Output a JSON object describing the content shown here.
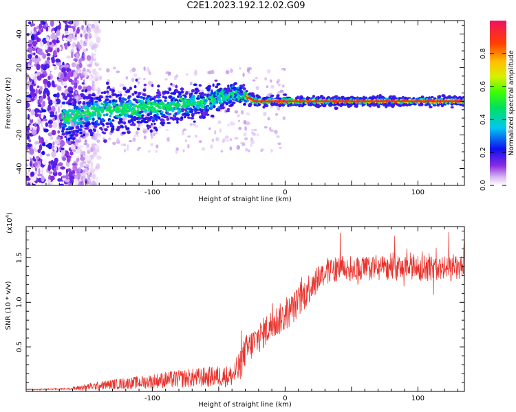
{
  "title": "C2E1.2023.192.12.02.G09",
  "colors": {
    "snr_line": "#e8322c",
    "axis": "#000000"
  },
  "chart_data": [
    {
      "type": "heatmap",
      "xlabel": "Height of straight line (km)",
      "ylabel": "Frequency (Hz)",
      "xlim": [
        -195,
        135
      ],
      "ylim": [
        -50,
        48
      ],
      "xticks": [
        -100,
        0,
        100
      ],
      "yticks": [
        -40,
        -20,
        0,
        20,
        40
      ],
      "colorbar": {
        "label": "Normalized spectral amplitude",
        "ticks": [
          "0.0",
          "0.2",
          "0.4",
          "0.6",
          "0.8"
        ],
        "range": [
          0,
          1
        ],
        "colormap": "rainbow"
      },
      "ridge": {
        "x": [
          -165,
          -150,
          -130,
          -110,
          -90,
          -70,
          -55,
          -45,
          -38,
          -30,
          -22,
          -10,
          0,
          20,
          40,
          60,
          80,
          100,
          120,
          135
        ],
        "y": [
          -10,
          -7,
          -5,
          -4,
          -3,
          -1,
          1,
          3,
          5,
          3,
          0,
          0,
          0,
          0,
          0,
          0,
          0,
          0,
          0,
          0
        ],
        "spread": [
          14,
          12,
          11,
          10,
          9,
          8,
          7,
          6,
          5,
          4,
          3,
          2.5,
          2.5,
          2.5,
          2.5,
          2.5,
          2.5,
          2.5,
          2.5,
          2.5
        ]
      },
      "noise_region": {
        "x": [
          -195,
          -140
        ],
        "y": [
          -50,
          48
        ]
      }
    },
    {
      "type": "line",
      "xlabel": "Height of straight line (km)",
      "ylabel": "SNR (10 * v/v)",
      "y_multiplier": "(x10",
      "y_multiplier_exp": "4",
      "y_multiplier_close": ")",
      "xlim": [
        -195,
        135
      ],
      "ylim": [
        0,
        1.85
      ],
      "xticks": [
        -100,
        0,
        100
      ],
      "yticks": [
        0.5,
        1.0,
        1.5
      ],
      "ytick_labels": [
        "0.5",
        "1.0",
        "1.5"
      ],
      "trend": {
        "x": [
          -195,
          -160,
          -150,
          -130,
          -110,
          -90,
          -70,
          -50,
          -40,
          -35,
          -30,
          -20,
          -10,
          0,
          10,
          20,
          25,
          40,
          60,
          80,
          100,
          120,
          135
        ],
        "y": [
          0.02,
          0.03,
          0.05,
          0.08,
          0.1,
          0.13,
          0.15,
          0.17,
          0.17,
          0.25,
          0.45,
          0.6,
          0.75,
          0.85,
          1.0,
          1.2,
          1.3,
          1.38,
          1.38,
          1.38,
          1.38,
          1.38,
          1.38
        ]
      }
    }
  ]
}
